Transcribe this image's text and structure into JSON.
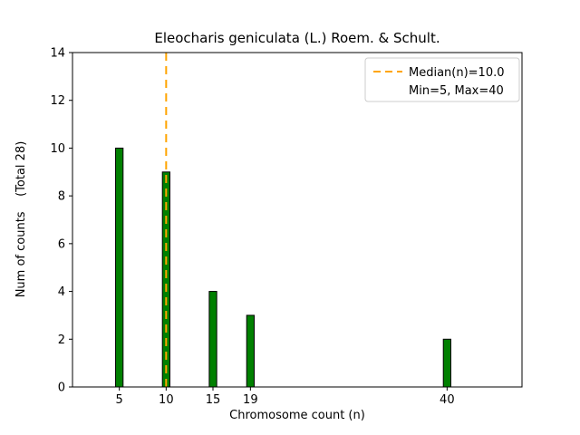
{
  "chart_data": {
    "type": "bar",
    "title": "Eleocharis geniculata (L.) Roem. & Schult.",
    "xlabel": "Chromosome count (n)",
    "ylabel": "Num of counts    (Total 28)",
    "x": [
      5,
      10,
      15,
      19,
      40
    ],
    "values": [
      10,
      9,
      4,
      3,
      2
    ],
    "total_counts": 28,
    "xticks": [
      5,
      10,
      15,
      19,
      40
    ],
    "yticks": [
      0,
      2,
      4,
      6,
      8,
      10,
      12,
      14
    ],
    "xlim": [
      0,
      48
    ],
    "ylim": [
      0,
      14
    ],
    "grid": false,
    "bar_color": "#008000",
    "bar_edge_color": "#000000",
    "bar_width_units": 0.8,
    "median_line": {
      "x": 10,
      "value_label": "Median(n)=10.0",
      "color": "#FFA500",
      "style": "dashed"
    },
    "legend": {
      "position": "upper right",
      "entries": [
        "Median(n)=10.0",
        "Min=5, Max=40"
      ]
    }
  }
}
